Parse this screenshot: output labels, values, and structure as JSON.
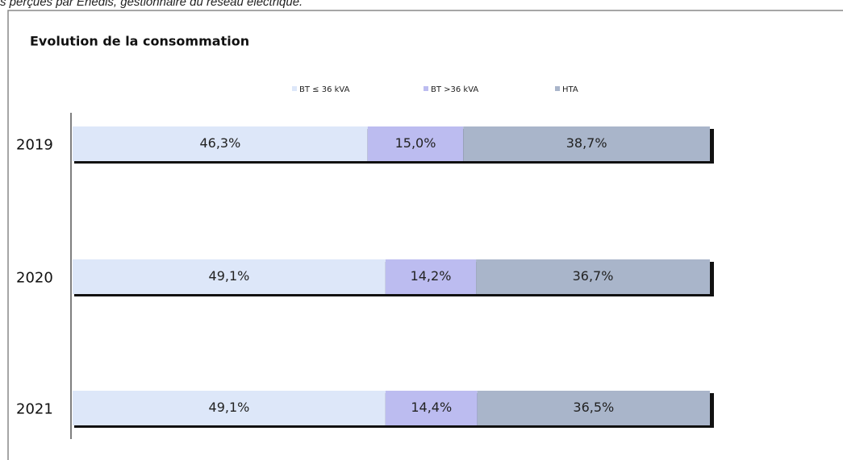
{
  "caption": "s perçues par Enedis, gestionnaire du réseau électrique.",
  "chart_data": {
    "type": "stacked-bar-horizontal",
    "title": "Evolution  de la consommation",
    "categories": [
      "2019",
      "2020",
      "2021"
    ],
    "series": [
      {
        "name": "BT ≤ 36 kVA",
        "color": "#dde7f9",
        "values": [
          46.3,
          49.1,
          49.1
        ],
        "value_labels": [
          "46,3%",
          "49,1%",
          "49,1%"
        ]
      },
      {
        "name": "BT >36 kVA",
        "color": "#bcbcf0",
        "values": [
          15.0,
          14.2,
          14.4
        ],
        "value_labels": [
          "15,0%",
          "14,2%",
          "14,4%"
        ]
      },
      {
        "name": "HTA",
        "color": "#a9b5ca",
        "values": [
          38.7,
          36.7,
          36.5
        ],
        "value_labels": [
          "38,7%",
          "36,7%",
          "36,5%"
        ]
      }
    ],
    "legend": "top"
  }
}
